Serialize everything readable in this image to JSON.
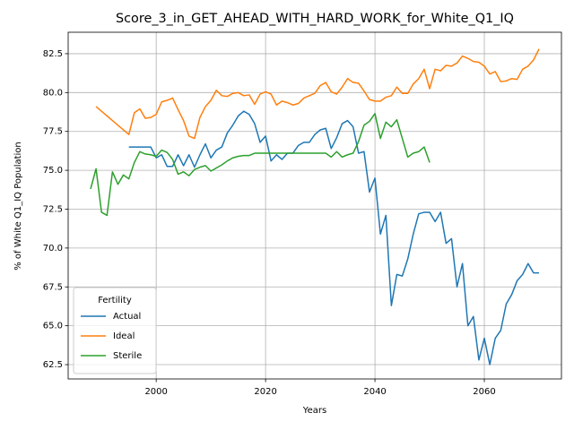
{
  "chart_data": {
    "type": "line",
    "title": "Score_3_in_GET_AHEAD_WITH_HARD_WORK_for_White_Q1_IQ",
    "x_label": "Years",
    "y_label": "% of White Q1_IQ Population",
    "legend_title": "Fertility",
    "legend": "lower left",
    "grid": true,
    "xlim": [
      1983.9,
      2074.1
    ],
    "ylim": [
      61.58,
      83.88
    ],
    "xticks": [
      2000,
      2020,
      2040,
      2060
    ],
    "yticks": [
      62.5,
      {
        "value": 65,
        "label": "65.0"
      },
      67.5,
      {
        "value": 70,
        "label": "70.0"
      },
      72.5,
      {
        "value": 75,
        "label": "75.0"
      },
      77.5,
      {
        "value": 80,
        "label": "80.0"
      },
      82.5
    ],
    "x": [
      1988,
      1989,
      1990,
      1991,
      1992,
      1993,
      1994,
      1995,
      1996,
      1997,
      1998,
      1999,
      2000,
      2001,
      2002,
      2003,
      2004,
      2005,
      2006,
      2007,
      2008,
      2009,
      2010,
      2011,
      2012,
      2013,
      2014,
      2015,
      2016,
      2017,
      2018,
      2019,
      2020,
      2021,
      2022,
      2023,
      2024,
      2025,
      2026,
      2027,
      2028,
      2029,
      2030,
      2031,
      2032,
      2033,
      2034,
      2035,
      2036,
      2037,
      2038,
      2039,
      2040,
      2041,
      2042,
      2043,
      2044,
      2045,
      2046,
      2047,
      2048,
      2049,
      2050,
      2051,
      2052,
      2053,
      2054,
      2055,
      2056,
      2057,
      2058,
      2059,
      2060,
      2061,
      2062,
      2063,
      2064,
      2065,
      2066,
      2067,
      2068,
      2069,
      2070
    ],
    "series": [
      {
        "name": "Actual",
        "color": "#1f77b4",
        "values": [
          null,
          null,
          null,
          null,
          null,
          null,
          null,
          76.5,
          76.5,
          76.5,
          76.5,
          76.5,
          75.8,
          76.0,
          75.25,
          75.25,
          76.0,
          75.3,
          76.0,
          75.2,
          76.0,
          76.7,
          75.8,
          76.3,
          76.5,
          77.4,
          77.9,
          78.5,
          78.8,
          78.6,
          78.0,
          76.8,
          77.2,
          75.6,
          76.0,
          75.7,
          76.1,
          76.1,
          76.6,
          76.8,
          76.8,
          77.3,
          77.6,
          77.7,
          76.4,
          77.1,
          78.0,
          78.2,
          77.8,
          76.1,
          76.2,
          73.6,
          74.5,
          70.9,
          72.1,
          66.3,
          68.3,
          68.2,
          69.3,
          70.9,
          72.2,
          72.3,
          72.3,
          71.7,
          72.3,
          70.3,
          70.6,
          67.5,
          69.0,
          65.0,
          65.6,
          62.8,
          64.2,
          62.5,
          64.2,
          64.7,
          66.4,
          67.0,
          67.9,
          68.3,
          69.0,
          68.4,
          68.4
        ]
      },
      {
        "name": "Ideal",
        "color": "#ff7f0e",
        "values": [
          null,
          79.1,
          78.8,
          78.5,
          78.2,
          77.9,
          77.6,
          77.3,
          78.7,
          78.95,
          78.35,
          78.4,
          78.6,
          79.4,
          79.5,
          79.65,
          78.9,
          78.2,
          77.2,
          77.05,
          78.4,
          79.1,
          79.5,
          80.15,
          79.8,
          79.75,
          79.95,
          80.0,
          79.8,
          79.85,
          79.25,
          79.9,
          80.05,
          79.9,
          79.2,
          79.45,
          79.35,
          79.2,
          79.3,
          79.65,
          79.8,
          79.95,
          80.45,
          80.65,
          80.05,
          79.9,
          80.35,
          80.9,
          80.65,
          80.6,
          80.1,
          79.55,
          79.45,
          79.45,
          79.7,
          79.8,
          80.35,
          79.95,
          79.95,
          80.55,
          80.9,
          81.5,
          80.25,
          81.5,
          81.4,
          81.75,
          81.7,
          81.9,
          82.35,
          82.2,
          82.0,
          81.95,
          81.7,
          81.2,
          81.35,
          80.7,
          80.75,
          80.9,
          80.85,
          81.5,
          81.7,
          82.1,
          82.8
        ]
      },
      {
        "name": "Sterile",
        "color": "#2ca02c",
        "values": [
          73.8,
          75.1,
          72.3,
          72.1,
          74.9,
          74.1,
          74.7,
          74.45,
          75.5,
          76.2,
          76.05,
          76.0,
          75.9,
          76.3,
          76.15,
          75.7,
          74.75,
          74.9,
          74.65,
          75.05,
          75.2,
          75.3,
          74.95,
          75.15,
          75.35,
          75.6,
          75.8,
          75.9,
          75.95,
          75.95,
          76.1,
          76.1,
          76.1,
          76.1,
          76.1,
          76.1,
          76.1,
          76.1,
          76.1,
          76.1,
          76.1,
          76.1,
          76.1,
          76.1,
          75.85,
          76.2,
          75.85,
          76.0,
          76.1,
          76.85,
          77.9,
          78.15,
          78.65,
          77.05,
          78.1,
          77.8,
          78.25,
          77.05,
          75.85,
          76.1,
          76.2,
          76.5,
          75.5,
          null,
          null,
          null,
          null,
          null,
          null,
          null,
          null,
          null,
          null,
          null,
          null,
          null,
          null,
          null,
          null,
          null,
          null,
          null,
          null
        ]
      }
    ]
  }
}
